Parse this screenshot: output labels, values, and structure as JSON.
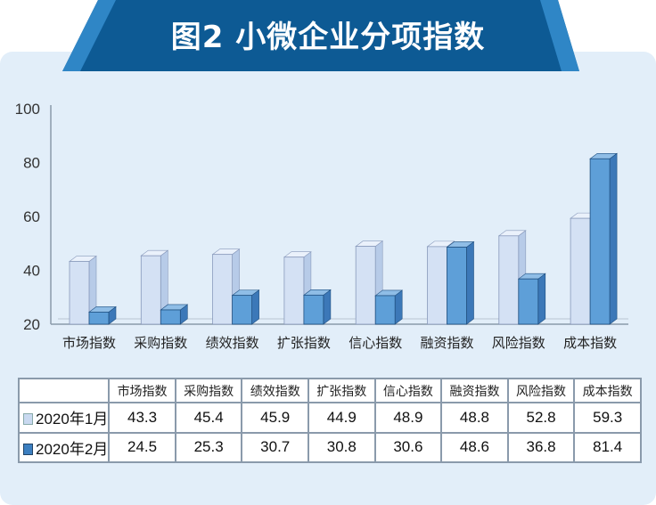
{
  "title": "图2  小微企业分项指数",
  "colors": {
    "banner": "#1a5f9a",
    "jan": "#c9d9f0",
    "feb": "#5b9bd5"
  },
  "chart_data": {
    "type": "bar",
    "title": "图2  小微企业分项指数",
    "categories": [
      "市场指数",
      "采购指数",
      "绩效指数",
      "扩张指数",
      "信心指数",
      "融资指数",
      "风险指数",
      "成本指数"
    ],
    "series": [
      {
        "name": "2020年1月",
        "values": [
          43.3,
          45.4,
          45.9,
          44.9,
          48.9,
          48.8,
          52.8,
          59.3
        ]
      },
      {
        "name": "2020年2月",
        "values": [
          24.5,
          25.3,
          30.7,
          30.8,
          30.6,
          48.6,
          36.8,
          81.4
        ]
      }
    ],
    "ylim": [
      20,
      100
    ],
    "yticks": [
      20,
      40,
      60,
      80,
      100
    ],
    "xlabel": "",
    "ylabel": "",
    "grid": false,
    "legend": "table-below"
  }
}
